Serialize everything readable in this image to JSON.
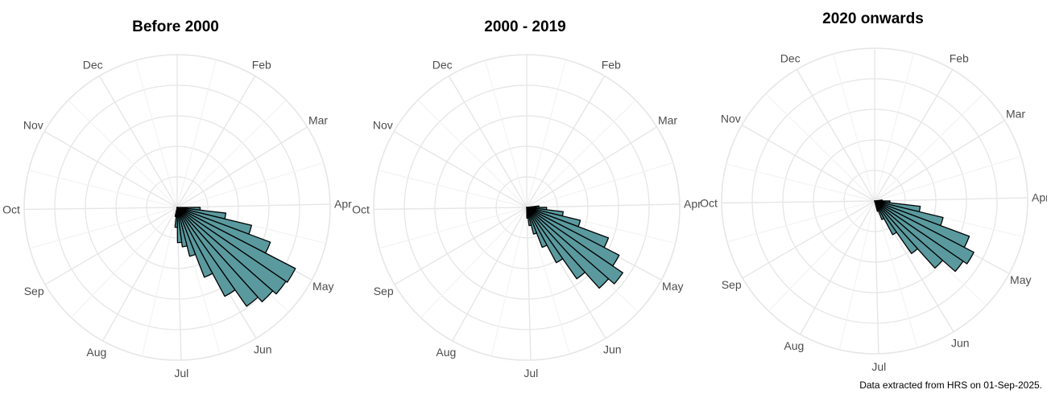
{
  "caption": "Data extracted from HRS on 01-Sep-2025.",
  "colors": {
    "bar_fill": "#5a9a9f",
    "bar_stroke": "#000000",
    "grid": "#e6e6e6"
  },
  "chart_data": [
    {
      "type": "polar-histogram",
      "title": "Before 2000",
      "theta_labels": [
        "Feb",
        "Mar",
        "Apr",
        "May",
        "Jun",
        "Jul",
        "Aug",
        "Sep",
        "Oct",
        "Nov",
        "Dec"
      ],
      "bin_width_days": 7,
      "bins": [
        {
          "start_day": 91,
          "value": 1.5
        },
        {
          "start_day": 98,
          "value": 3.2
        },
        {
          "start_day": 105,
          "value": 5.0
        },
        {
          "start_day": 112,
          "value": 6.5
        },
        {
          "start_day": 119,
          "value": 8.7
        },
        {
          "start_day": 126,
          "value": 8.6
        },
        {
          "start_day": 133,
          "value": 8.3
        },
        {
          "start_day": 140,
          "value": 7.9
        },
        {
          "start_day": 147,
          "value": 6.6
        },
        {
          "start_day": 154,
          "value": 4.9
        },
        {
          "start_day": 161,
          "value": 3.3
        },
        {
          "start_day": 168,
          "value": 2.6
        },
        {
          "start_day": 175,
          "value": 2.3
        },
        {
          "start_day": 182,
          "value": 1.3
        },
        {
          "start_day": 189,
          "value": 0.6
        }
      ],
      "r_max": 10
    },
    {
      "type": "polar-histogram",
      "title": "2000 - 2019",
      "theta_labels": [
        "Feb",
        "Mar",
        "Apr",
        "May",
        "Jun",
        "Jul",
        "Aug",
        "Sep",
        "Oct",
        "Nov",
        "Dec"
      ],
      "bin_width_days": 7,
      "bins": [
        {
          "start_day": 84,
          "value": 0.8
        },
        {
          "start_day": 91,
          "value": 1.3
        },
        {
          "start_day": 98,
          "value": 2.4
        },
        {
          "start_day": 105,
          "value": 3.6
        },
        {
          "start_day": 112,
          "value": 5.7
        },
        {
          "start_day": 119,
          "value": 6.8
        },
        {
          "start_day": 126,
          "value": 7.6
        },
        {
          "start_day": 133,
          "value": 7.1
        },
        {
          "start_day": 140,
          "value": 5.7
        },
        {
          "start_day": 147,
          "value": 4.1
        },
        {
          "start_day": 154,
          "value": 2.8
        },
        {
          "start_day": 161,
          "value": 1.8
        },
        {
          "start_day": 168,
          "value": 1.2
        },
        {
          "start_day": 175,
          "value": 0.7
        }
      ],
      "r_max": 10
    },
    {
      "type": "polar-histogram",
      "title": "2020 onwards",
      "theta_labels": [
        "Feb",
        "Mar",
        "Apr",
        "May",
        "Jun",
        "Jul",
        "Aug",
        "Sep",
        "Oct",
        "Nov",
        "Dec"
      ],
      "bin_width_days": 7,
      "bins": [
        {
          "start_day": 84,
          "value": 0.5
        },
        {
          "start_day": 91,
          "value": 1.0
        },
        {
          "start_day": 98,
          "value": 3.0
        },
        {
          "start_day": 105,
          "value": 4.6
        },
        {
          "start_day": 112,
          "value": 6.6
        },
        {
          "start_day": 119,
          "value": 7.3
        },
        {
          "start_day": 126,
          "value": 7.0
        },
        {
          "start_day": 133,
          "value": 5.9
        },
        {
          "start_day": 140,
          "value": 4.2
        },
        {
          "start_day": 147,
          "value": 2.5
        },
        {
          "start_day": 154,
          "value": 1.3
        },
        {
          "start_day": 161,
          "value": 0.7
        }
      ],
      "r_max": 10
    }
  ]
}
